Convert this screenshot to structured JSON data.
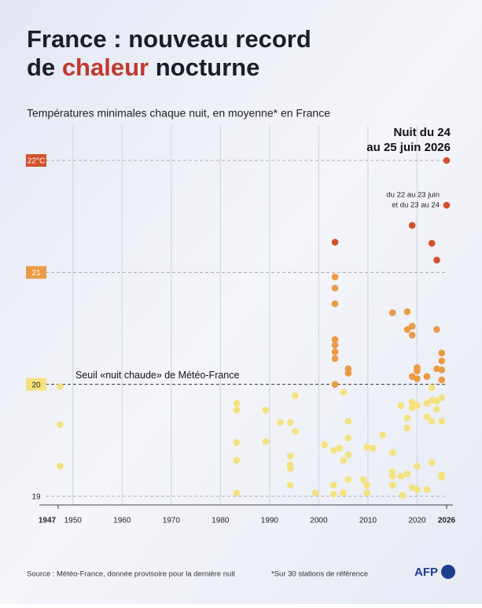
{
  "chart_data": {
    "type": "scatter",
    "title_line1": "France : nouveau record",
    "title_line2_start": "de",
    "title_line2_highlight": "chaleur",
    "title_line2_end": "nocturne",
    "highlight_color": "#c0392b",
    "subtitle": "Températures minimales chaque nuit, en moyenne* en France",
    "annotation_main": [
      "Nuit du 24",
      "au 25 juin 2026"
    ],
    "annotation_secondary": [
      "du 22 au 23 juin",
      "et du 23 au 24"
    ],
    "threshold": 20,
    "threshold_label": "Seuil «nuit chaude» de Météo-France",
    "source": "Source : Météo-France, donnée provisoire pour la dernière nuit",
    "note": "*Sur 30 stations de référence",
    "logo": "AFP",
    "xlim": [
      1947,
      2026
    ],
    "xticks": [
      1947,
      1950,
      1960,
      1970,
      1980,
      1990,
      2000,
      2010,
      2020,
      2026
    ],
    "ylim": [
      19,
      22
    ],
    "yticks": [
      19,
      20,
      21,
      {
        "value": 22,
        "label": "22°C"
      }
    ],
    "ytick_colors": [
      null,
      "#f5e27d",
      "#eb9a45",
      "#d2512b"
    ],
    "grid": true,
    "series": [
      {
        "color": "#f5e27d",
        "x": [
          1947.4,
          1947.4,
          1947.4,
          1983.3,
          1983.3,
          1983.3,
          1983.3,
          1983.3,
          1989.2,
          1989.2,
          1992.2,
          1994.2,
          1994.2,
          1994.2,
          1994.2,
          1994.2,
          1995.2,
          1995.2,
          1999.3,
          2001.2,
          2003,
          2003,
          2003,
          2004.2,
          2005,
          2005,
          2005,
          2006,
          2006,
          2006,
          2006,
          2009,
          2009.8,
          2009.8,
          2009.8,
          2011,
          2013,
          2015,
          2015,
          2015,
          2015,
          2016.7,
          2016.7,
          2017,
          2018,
          2018,
          2018,
          2019,
          2019,
          2019,
          2020,
          2020,
          2020,
          2022,
          2022,
          2022,
          2023,
          2023,
          2023,
          2023,
          2024,
          2024,
          2025,
          2025,
          2025,
          2025
        ],
        "values": [
          19.98,
          19.64,
          19.27,
          19.83,
          19.77,
          19.48,
          19.32,
          19.03,
          19.77,
          19.49,
          19.66,
          19.66,
          19.36,
          19.28,
          19.25,
          19.1,
          19.58,
          19.9,
          19.03,
          19.46,
          19.41,
          19.1,
          19.02,
          19.43,
          19.93,
          19.32,
          19.03,
          19.67,
          19.52,
          19.37,
          19.15,
          19.15,
          19.44,
          19.1,
          19.03,
          19.43,
          19.55,
          19.39,
          19.22,
          19.18,
          19.1,
          19.81,
          19.18,
          19.01,
          19.61,
          19.7,
          19.2,
          19.84,
          19.79,
          19.08,
          19.81,
          19.27,
          19.06,
          19.83,
          19.71,
          19.06,
          19.97,
          19.86,
          19.67,
          19.3,
          19.85,
          19.78,
          19.88,
          19.67,
          19.19,
          19.17
        ]
      },
      {
        "color": "#eb9a45",
        "x": [
          2003.3,
          2003.3,
          2003.3,
          2003.3,
          2003.3,
          2003.3,
          2003.3,
          2003.3,
          2006,
          2006,
          2015,
          2018,
          2018,
          2019,
          2019,
          2019,
          2020,
          2020,
          2020,
          2022,
          2024,
          2024,
          2025,
          2025,
          2025,
          2025
        ],
        "values": [
          20.96,
          20.86,
          20.72,
          20.4,
          20.35,
          20.29,
          20.23,
          20.0,
          20.14,
          20.1,
          20.64,
          20.65,
          20.49,
          20.52,
          20.44,
          20.07,
          20.15,
          20.12,
          20.05,
          20.07,
          20.49,
          20.14,
          20.28,
          20.21,
          20.13,
          20.04
        ]
      },
      {
        "color": "#d2512b",
        "x": [
          2003.3,
          2019,
          2023,
          2024,
          2026,
          2026
        ],
        "values": [
          21.27,
          21.42,
          21.26,
          21.11,
          21.6,
          22.0
        ]
      }
    ]
  }
}
